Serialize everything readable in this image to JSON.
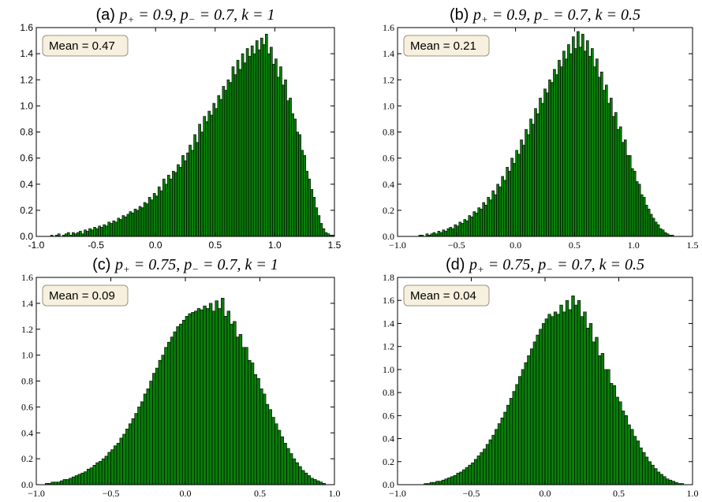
{
  "chart_data": [
    {
      "type": "bar",
      "panel_tag": "(a)",
      "title_math": {
        "p_plus": "0.9",
        "p_minus": "0.7",
        "k": "1"
      },
      "annotation": "Mean = 0.47",
      "xlim": [
        -1.0,
        1.5
      ],
      "ylim": [
        0.0,
        1.6
      ],
      "xticks": [
        -1.0,
        -0.5,
        0.0,
        0.5,
        1.0,
        1.5
      ],
      "yticks": [
        0.0,
        0.2,
        0.4,
        0.6,
        0.8,
        1.0,
        1.2,
        1.4,
        1.6
      ],
      "xtick_labels": [
        "-1.0",
        "-0.5",
        "0.0",
        "0.5",
        "1.0",
        "1.5"
      ],
      "ytick_labels": [
        "0.0",
        "0.2",
        "0.4",
        "0.6",
        "0.8",
        "1.0",
        "1.2",
        "1.4",
        "1.6"
      ],
      "tick_font": "sans",
      "bin_start": -0.88,
      "bin_width": 0.02,
      "values": [
        0.01,
        0,
        0.01,
        0.02,
        0,
        0.01,
        0.02,
        0.03,
        0.01,
        0.03,
        0.02,
        0.03,
        0.04,
        0.02,
        0.05,
        0.04,
        0.06,
        0.05,
        0.07,
        0.06,
        0.08,
        0.07,
        0.09,
        0.08,
        0.11,
        0.1,
        0.12,
        0.11,
        0.14,
        0.13,
        0.16,
        0.15,
        0.17,
        0.19,
        0.18,
        0.21,
        0.2,
        0.23,
        0.22,
        0.26,
        0.25,
        0.3,
        0.28,
        0.33,
        0.31,
        0.38,
        0.35,
        0.44,
        0.4,
        0.47,
        0.44,
        0.5,
        0.49,
        0.55,
        0.53,
        0.62,
        0.58,
        0.64,
        0.7,
        0.66,
        0.78,
        0.72,
        0.86,
        0.8,
        0.92,
        0.88,
        0.96,
        0.93,
        1.02,
        0.98,
        1.08,
        1.05,
        1.15,
        1.12,
        1.2,
        1.18,
        1.3,
        1.24,
        1.35,
        1.28,
        1.4,
        1.33,
        1.44,
        1.38,
        1.46,
        1.4,
        1.5,
        1.43,
        1.52,
        1.47,
        1.55,
        1.4,
        1.45,
        1.32,
        1.36,
        1.22,
        1.3,
        1.16,
        1.2,
        1.04,
        1.06,
        0.94,
        0.9,
        0.8,
        0.78,
        0.66,
        0.62,
        0.5,
        0.44,
        0.36,
        0.3,
        0.22,
        0.16,
        0.1,
        0.06,
        0.03,
        0.02,
        0.01,
        0.01
      ]
    },
    {
      "type": "bar",
      "panel_tag": "(b)",
      "title_math": {
        "p_plus": "0.9",
        "p_minus": "0.7",
        "k": "0.5"
      },
      "annotation": "Mean = 0.21",
      "xlim": [
        -1.0,
        1.5
      ],
      "ylim": [
        0.0,
        1.6
      ],
      "xticks": [
        -1.0,
        -0.5,
        0.0,
        0.5,
        1.0,
        1.5
      ],
      "yticks": [
        0.0,
        0.2,
        0.4,
        0.6,
        0.8,
        1.0,
        1.2,
        1.4,
        1.6
      ],
      "xtick_labels": [
        "−1.0",
        "−0.5",
        "0.0",
        "0.5",
        "1.0",
        "1.5"
      ],
      "ytick_labels": [
        "0.0",
        "0.2",
        "0.4",
        "0.6",
        "0.8",
        "1.0",
        "1.2",
        "1.4",
        "1.6"
      ],
      "tick_font": "serif",
      "bin_start": -0.82,
      "bin_width": 0.02,
      "values": [
        0.01,
        0.01,
        0,
        0.02,
        0.01,
        0.02,
        0.03,
        0.02,
        0.04,
        0.03,
        0.05,
        0.04,
        0.06,
        0.07,
        0.06,
        0.09,
        0.08,
        0.11,
        0.1,
        0.13,
        0.12,
        0.16,
        0.15,
        0.19,
        0.18,
        0.22,
        0.21,
        0.26,
        0.24,
        0.3,
        0.28,
        0.35,
        0.32,
        0.4,
        0.38,
        0.46,
        0.43,
        0.53,
        0.5,
        0.6,
        0.56,
        0.66,
        0.63,
        0.74,
        0.7,
        0.82,
        0.78,
        0.9,
        0.86,
        0.98,
        0.94,
        1.06,
        1.02,
        1.13,
        1.1,
        1.2,
        1.18,
        1.28,
        1.24,
        1.35,
        1.3,
        1.42,
        1.36,
        1.47,
        1.4,
        1.53,
        1.44,
        1.57,
        1.45,
        1.55,
        1.42,
        1.5,
        1.38,
        1.44,
        1.3,
        1.36,
        1.22,
        1.26,
        1.12,
        1.16,
        1.02,
        1.06,
        0.92,
        0.95,
        0.82,
        0.84,
        0.72,
        0.74,
        0.62,
        0.62,
        0.52,
        0.5,
        0.42,
        0.4,
        0.32,
        0.3,
        0.24,
        0.21,
        0.17,
        0.14,
        0.11,
        0.09,
        0.06,
        0.05,
        0.03,
        0.02,
        0.01,
        0.01
      ]
    },
    {
      "type": "bar",
      "panel_tag": "(c)",
      "title_math": {
        "p_plus": "0.75",
        "p_minus": "0.7",
        "k": "1"
      },
      "annotation": "Mean = 0.09",
      "xlim": [
        -1.0,
        1.0
      ],
      "ylim": [
        0.0,
        1.6
      ],
      "xticks": [
        -1.0,
        -0.5,
        0.0,
        0.5,
        1.0
      ],
      "yticks": [
        0.0,
        0.2,
        0.4,
        0.6,
        0.8,
        1.0,
        1.2,
        1.4,
        1.6
      ],
      "xtick_labels": [
        "−1.0",
        "−0.5",
        "0.0",
        "0.5",
        "1.0"
      ],
      "ytick_labels": [
        "0.0",
        "0.2",
        "0.4",
        "0.6",
        "0.8",
        "1.0",
        "1.2",
        "1.4",
        "1.6"
      ],
      "tick_font": "serif",
      "bin_start": -0.94,
      "bin_width": 0.02,
      "values": [
        0.01,
        0.01,
        0.02,
        0.02,
        0.02,
        0.03,
        0.04,
        0.04,
        0.05,
        0.06,
        0.07,
        0.08,
        0.09,
        0.1,
        0.12,
        0.13,
        0.15,
        0.17,
        0.18,
        0.2,
        0.22,
        0.25,
        0.27,
        0.3,
        0.32,
        0.36,
        0.39,
        0.43,
        0.47,
        0.51,
        0.55,
        0.6,
        0.64,
        0.7,
        0.74,
        0.8,
        0.86,
        0.9,
        0.96,
        1.0,
        1.06,
        1.1,
        1.14,
        1.18,
        1.22,
        1.24,
        1.27,
        1.3,
        1.32,
        1.33,
        1.34,
        1.36,
        1.35,
        1.38,
        1.36,
        1.4,
        1.34,
        1.42,
        1.36,
        1.44,
        1.3,
        1.34,
        1.24,
        1.26,
        1.14,
        1.16,
        1.06,
        1.06,
        0.96,
        0.94,
        0.85,
        0.82,
        0.74,
        0.7,
        0.62,
        0.58,
        0.52,
        0.47,
        0.42,
        0.37,
        0.32,
        0.28,
        0.24,
        0.2,
        0.17,
        0.14,
        0.11,
        0.09,
        0.07,
        0.05,
        0.04,
        0.03,
        0.02,
        0.01
      ]
    },
    {
      "type": "bar",
      "panel_tag": "(d)",
      "title_math": {
        "p_plus": "0.75",
        "p_minus": "0.7",
        "k": "0.5"
      },
      "annotation": "Mean = 0.04",
      "xlim": [
        -1.0,
        1.0
      ],
      "ylim": [
        0.0,
        1.8
      ],
      "xticks": [
        -1.0,
        -0.5,
        0.0,
        0.5,
        1.0
      ],
      "yticks": [
        0.0,
        0.2,
        0.4,
        0.6,
        0.8,
        1.0,
        1.2,
        1.4,
        1.6,
        1.8
      ],
      "xtick_labels": [
        "−1.0",
        "−0.5",
        "0.0",
        "0.5",
        "1.0"
      ],
      "ytick_labels": [
        "0.0",
        "0.2",
        "0.4",
        "0.6",
        "0.8",
        "1.0",
        "1.2",
        "1.4",
        "1.6",
        "1.8"
      ],
      "tick_font": "serif",
      "bin_start": -0.82,
      "bin_width": 0.02,
      "values": [
        0.01,
        0.01,
        0.02,
        0.02,
        0.03,
        0.03,
        0.04,
        0.05,
        0.06,
        0.07,
        0.08,
        0.1,
        0.11,
        0.13,
        0.15,
        0.17,
        0.19,
        0.22,
        0.25,
        0.28,
        0.31,
        0.35,
        0.39,
        0.43,
        0.48,
        0.53,
        0.58,
        0.63,
        0.69,
        0.75,
        0.81,
        0.87,
        0.94,
        1.0,
        1.06,
        1.12,
        1.18,
        1.24,
        1.3,
        1.35,
        1.4,
        1.44,
        1.48,
        1.46,
        1.5,
        1.48,
        1.56,
        1.5,
        1.6,
        1.52,
        1.64,
        1.56,
        1.6,
        1.46,
        1.5,
        1.36,
        1.4,
        1.24,
        1.28,
        1.12,
        1.14,
        1.0,
        1.0,
        0.88,
        0.86,
        0.76,
        0.72,
        0.64,
        0.6,
        0.52,
        0.48,
        0.42,
        0.38,
        0.32,
        0.28,
        0.24,
        0.2,
        0.17,
        0.14,
        0.11,
        0.09,
        0.07,
        0.05,
        0.04,
        0.03,
        0.02,
        0.01,
        0.01
      ]
    }
  ]
}
